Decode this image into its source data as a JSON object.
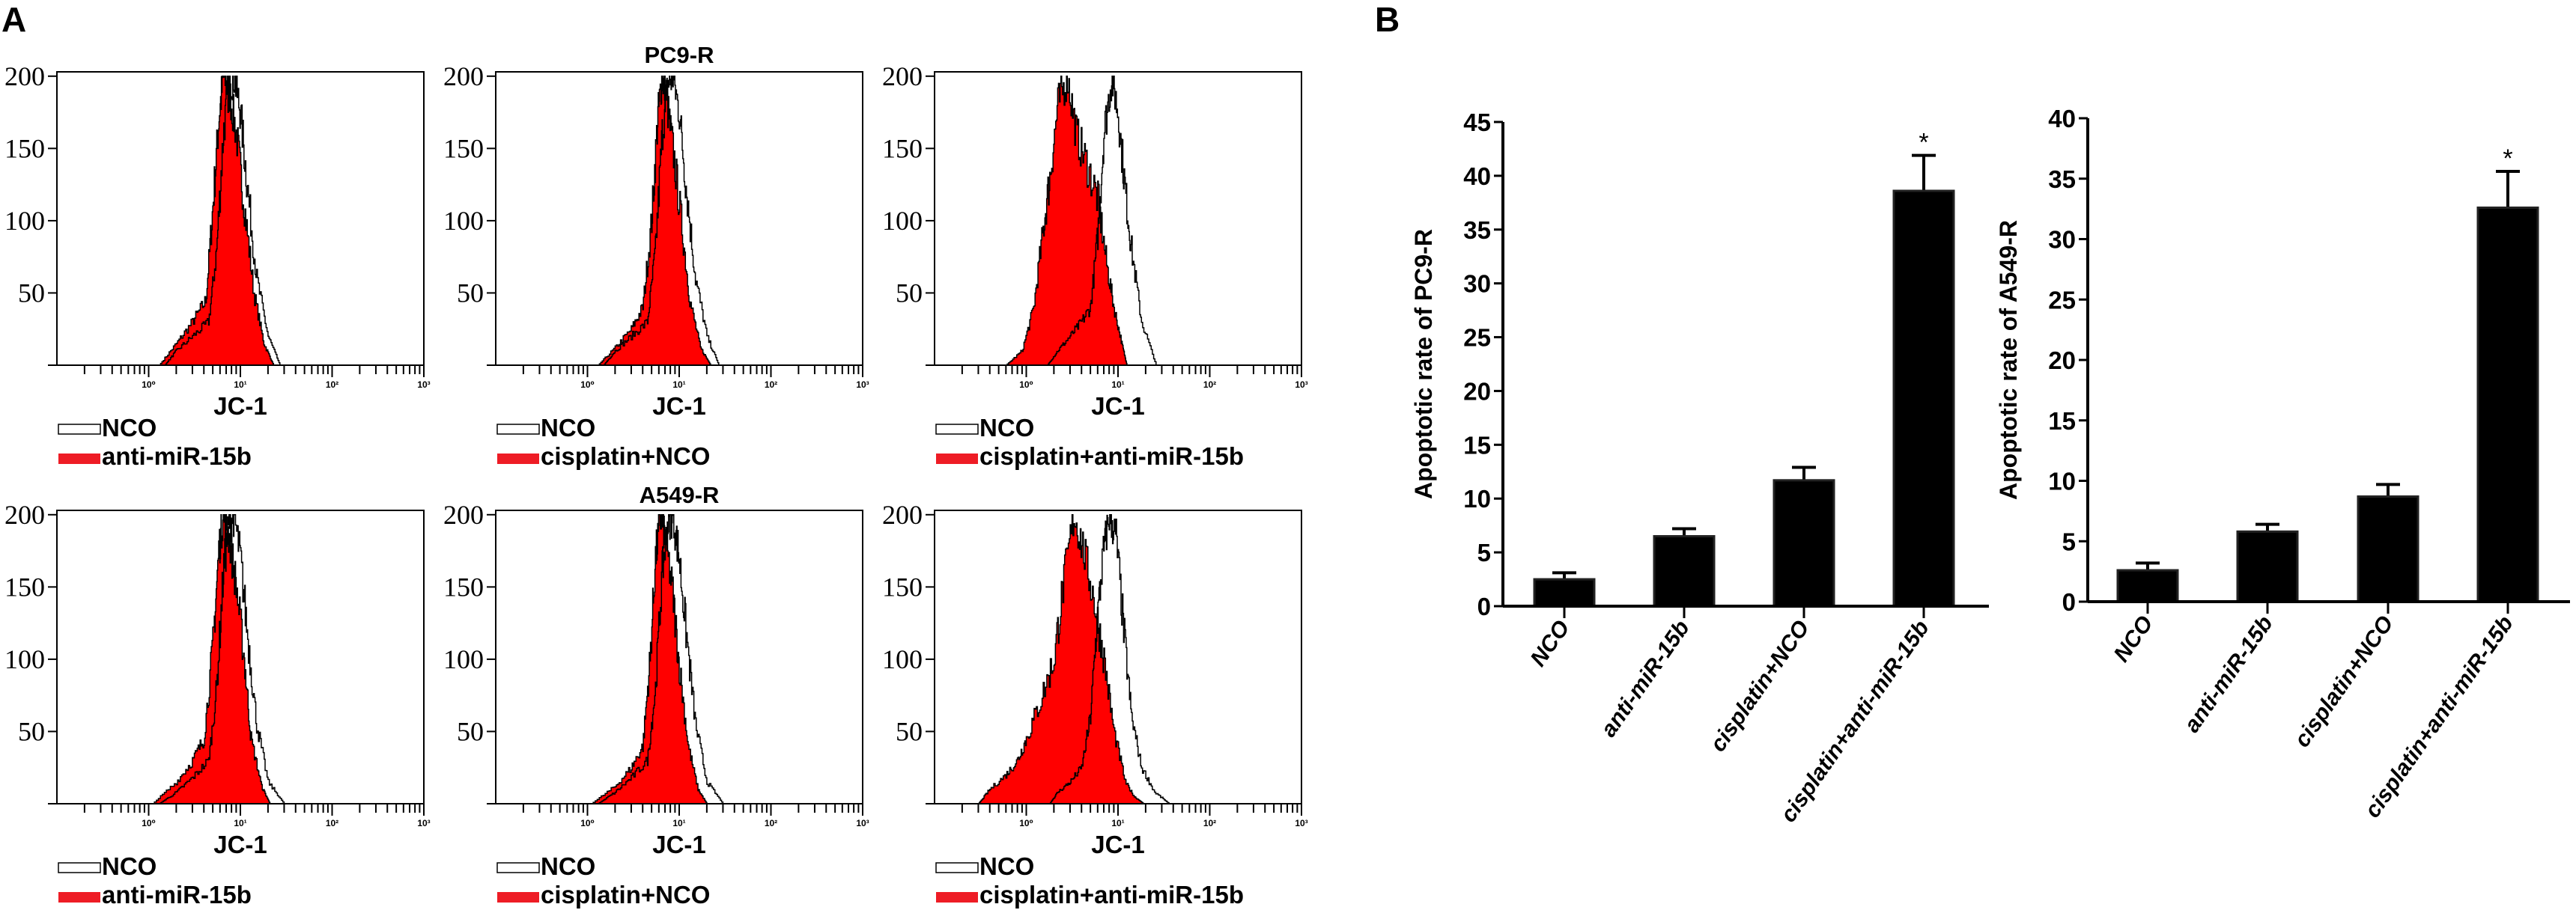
{
  "panel_labels": {
    "a": "A",
    "b": "B"
  },
  "row_titles": [
    "PC9-R",
    "A549-R"
  ],
  "colors": {
    "treatment_fill": "#ff0000",
    "legend_red": "#ee1c25",
    "outline": "#000000",
    "bar": "#000000"
  },
  "chart_data": [
    {
      "type": "area",
      "panel": "A",
      "row": "PC9-R",
      "xlabel": "JC-1",
      "xscale": "log",
      "xlim": [
        0.1,
        1000
      ],
      "ylim": [
        0,
        200
      ],
      "yticks": [
        50,
        100,
        150,
        200
      ],
      "xtick_labels": [
        "10⁰",
        "10¹",
        "10²",
        "10³"
      ],
      "series": [
        {
          "name": "NCO",
          "style": "outline",
          "x": [
            1.5,
            2,
            3,
            4.5,
            5.5,
            6.5,
            7.5,
            8.5,
            10,
            12,
            15,
            20,
            27
          ],
          "y": [
            0,
            10,
            20,
            30,
            80,
            160,
            195,
            200,
            175,
            120,
            60,
            20,
            0
          ]
        },
        {
          "name": "anti-miR-15b",
          "style": "filled",
          "x": [
            1.3,
            2,
            3,
            4.2,
            5,
            5.8,
            6.5,
            7.5,
            9,
            11,
            14,
            18,
            23
          ],
          "y": [
            0,
            15,
            30,
            45,
            110,
            170,
            200,
            190,
            160,
            110,
            50,
            15,
            0
          ]
        }
      ]
    },
    {
      "type": "area",
      "panel": "A",
      "row": "PC9-R",
      "xlabel": "JC-1",
      "xscale": "log",
      "xlim": [
        0.1,
        1000
      ],
      "ylim": [
        0,
        200
      ],
      "yticks": [
        50,
        100,
        150,
        200
      ],
      "xtick_labels": [
        "10⁰",
        "10¹",
        "10²",
        "10³"
      ],
      "series": [
        {
          "name": "NCO",
          "style": "outline",
          "x": [
            1.5,
            2,
            3,
            4.5,
            5.5,
            6.5,
            7.5,
            8.5,
            10,
            12,
            15,
            20,
            27
          ],
          "y": [
            0,
            10,
            20,
            30,
            80,
            160,
            195,
            200,
            175,
            120,
            60,
            20,
            0
          ]
        },
        {
          "name": "cisplatin+NCO",
          "style": "filled",
          "x": [
            1.3,
            2,
            3,
            4,
            5,
            5.8,
            6.5,
            7.2,
            8.5,
            10.5,
            13,
            17,
            22
          ],
          "y": [
            0,
            12,
            25,
            40,
            100,
            170,
            200,
            185,
            150,
            100,
            45,
            12,
            0
          ]
        }
      ]
    },
    {
      "type": "area",
      "panel": "A",
      "row": "PC9-R",
      "xlabel": "JC-1",
      "xscale": "log",
      "xlim": [
        0.1,
        1000
      ],
      "ylim": [
        0,
        200
      ],
      "yticks": [
        50,
        100,
        150,
        200
      ],
      "xtick_labels": [
        "10⁰",
        "10¹",
        "10²",
        "10³"
      ],
      "series": [
        {
          "name": "NCO",
          "style": "outline",
          "x": [
            1.7,
            2.2,
            3,
            4,
            5,
            6,
            7,
            8.5,
            10,
            12,
            14,
            18,
            26
          ],
          "y": [
            0,
            10,
            20,
            30,
            40,
            90,
            160,
            200,
            175,
            120,
            80,
            30,
            0
          ]
        },
        {
          "name": "cisplatin+anti-miR-15b",
          "style": "filled",
          "x": [
            0.6,
            0.9,
            1.2,
            1.5,
            1.8,
            2.2,
            2.8,
            3.5,
            4.5,
            6,
            7.5,
            9,
            11,
            12.5
          ],
          "y": [
            0,
            10,
            40,
            90,
            130,
            180,
            200,
            160,
            140,
            115,
            70,
            40,
            15,
            0
          ]
        }
      ]
    },
    {
      "type": "area",
      "panel": "A",
      "row": "A549-R",
      "xlabel": "JC-1",
      "xscale": "log",
      "xlim": [
        0.1,
        1000
      ],
      "ylim": [
        0,
        200
      ],
      "yticks": [
        50,
        100,
        150,
        200
      ],
      "xtick_labels": [
        "10⁰",
        "10¹",
        "10²",
        "10³"
      ],
      "series": [
        {
          "name": "NCO",
          "style": "outline",
          "x": [
            1.3,
            2,
            3,
            4.5,
            5.5,
            6.5,
            7.5,
            8.5,
            10,
            12,
            15,
            20,
            30
          ],
          "y": [
            0,
            8,
            18,
            30,
            80,
            160,
            195,
            200,
            170,
            115,
            55,
            15,
            0
          ]
        },
        {
          "name": "anti-miR-15b",
          "style": "filled",
          "x": [
            1.1,
            2,
            3,
            4,
            5,
            5.8,
            6.5,
            7.5,
            9,
            11,
            13,
            17,
            21
          ],
          "y": [
            0,
            15,
            30,
            45,
            110,
            175,
            200,
            185,
            150,
            100,
            45,
            12,
            0
          ]
        }
      ]
    },
    {
      "type": "area",
      "panel": "A",
      "row": "A549-R",
      "xlabel": "JC-1",
      "xscale": "log",
      "xlim": [
        0.1,
        1000
      ],
      "ylim": [
        0,
        200
      ],
      "yticks": [
        50,
        100,
        150,
        200
      ],
      "xtick_labels": [
        "10⁰",
        "10¹",
        "10²",
        "10³"
      ],
      "series": [
        {
          "name": "NCO",
          "style": "outline",
          "x": [
            1.3,
            2,
            3,
            4.5,
            5.5,
            6.5,
            7.5,
            8.5,
            10,
            12,
            15,
            20,
            30
          ],
          "y": [
            0,
            8,
            18,
            30,
            80,
            160,
            195,
            200,
            170,
            115,
            55,
            15,
            0
          ]
        },
        {
          "name": "cisplatin+NCO",
          "style": "filled",
          "x": [
            1.1,
            2,
            3,
            4,
            4.8,
            5.5,
            6.3,
            7,
            8.5,
            10,
            12.5,
            16,
            20
          ],
          "y": [
            0,
            12,
            25,
            40,
            100,
            170,
            200,
            185,
            145,
            95,
            40,
            10,
            0
          ]
        }
      ]
    },
    {
      "type": "area",
      "panel": "A",
      "row": "A549-R",
      "xlabel": "JC-1",
      "xscale": "log",
      "xlim": [
        0.1,
        1000
      ],
      "ylim": [
        0,
        200
      ],
      "yticks": [
        50,
        100,
        150,
        200
      ],
      "xtick_labels": [
        "10⁰",
        "10¹",
        "10²",
        "10³"
      ],
      "series": [
        {
          "name": "NCO",
          "style": "outline",
          "x": [
            1.8,
            2.2,
            3,
            4,
            5,
            5.8,
            6.8,
            8,
            9.5,
            11.5,
            14,
            18,
            25,
            36
          ],
          "y": [
            0,
            8,
            15,
            25,
            60,
            120,
            170,
            200,
            185,
            120,
            60,
            25,
            8,
            0
          ]
        },
        {
          "name": "cisplatin+anti-miR-15b",
          "style": "filled",
          "x": [
            0.3,
            0.4,
            0.6,
            0.8,
            1,
            1.4,
            2,
            2.5,
            3.3,
            4.2,
            5.5,
            7,
            9,
            12,
            15,
            19
          ],
          "y": [
            0,
            10,
            20,
            30,
            45,
            70,
            100,
            150,
            200,
            175,
            140,
            100,
            50,
            15,
            5,
            0
          ]
        }
      ]
    },
    {
      "type": "bar",
      "panel": "B",
      "categories": [
        "NCO",
        "anti-miR-15b",
        "cisplatin+NCO",
        "cisplatin+anti-miR-15b"
      ],
      "values": [
        2.5,
        6.5,
        11.7,
        38.6
      ],
      "error": [
        0.6,
        0.7,
        1.2,
        3.3
      ],
      "annotations": [
        "",
        "",
        "",
        "*"
      ],
      "ylabel": "Apoptotic rate of PC9-R",
      "ylim": [
        0,
        45
      ],
      "yticks": [
        0,
        5,
        10,
        15,
        20,
        25,
        30,
        35,
        40,
        45
      ]
    },
    {
      "type": "bar",
      "panel": "B",
      "categories": [
        "NCO",
        "anti-miR-15b",
        "cisplatin+NCO",
        "cisplatin+anti-miR-15b"
      ],
      "values": [
        2.6,
        5.8,
        8.7,
        32.6
      ],
      "error": [
        0.6,
        0.6,
        1.0,
        3.0
      ],
      "annotations": [
        "",
        "",
        "",
        "*"
      ],
      "ylabel": "Apoptotic rate of A549-R",
      "ylim": [
        0,
        40
      ],
      "yticks": [
        0,
        5,
        10,
        15,
        20,
        25,
        30,
        35,
        40
      ]
    }
  ]
}
